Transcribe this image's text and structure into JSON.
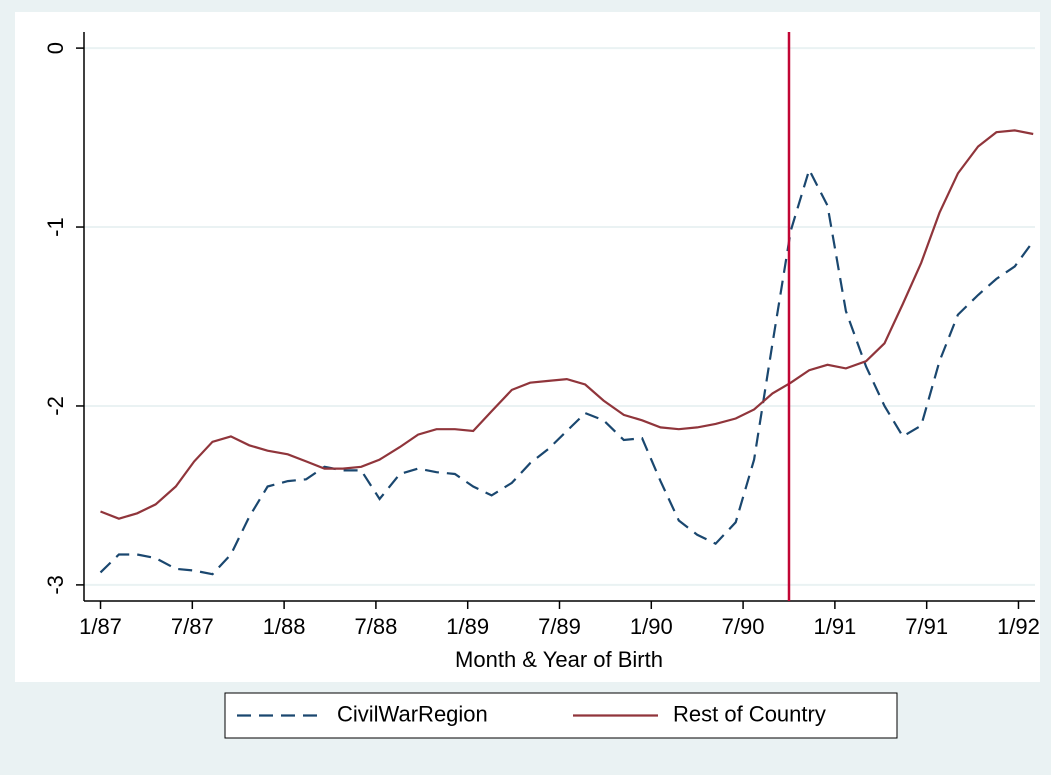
{
  "chart_data": {
    "type": "line",
    "x_label": "Month & Year of Birth",
    "x": [
      1987.0,
      1987.1,
      1987.2,
      1987.3,
      1987.41,
      1987.51,
      1987.61,
      1987.71,
      1987.81,
      1987.91,
      1988.02,
      1988.12,
      1988.22,
      1988.32,
      1988.42,
      1988.52,
      1988.63,
      1988.73,
      1988.83,
      1988.93,
      1989.03,
      1989.13,
      1989.24,
      1989.34,
      1989.44,
      1989.54,
      1989.64,
      1989.74,
      1989.85,
      1989.95,
      1990.05,
      1990.15,
      1990.25,
      1990.35,
      1990.46,
      1990.56,
      1990.66,
      1990.76,
      1990.86,
      1990.96,
      1991.06,
      1991.17,
      1991.27,
      1991.37,
      1991.47,
      1991.57,
      1991.67,
      1991.78,
      1991.88,
      1991.98,
      1992.08
    ],
    "series": [
      {
        "name": "CivilWarRegion",
        "color": "#1a476f",
        "dash": true,
        "values": [
          -2.93,
          -2.83,
          -2.83,
          -2.85,
          -2.91,
          -2.92,
          -2.94,
          -2.83,
          -2.62,
          -2.45,
          -2.42,
          -2.41,
          -2.34,
          -2.36,
          -2.36,
          -2.52,
          -2.38,
          -2.35,
          -2.37,
          -2.38,
          -2.45,
          -2.5,
          -2.43,
          -2.32,
          -2.24,
          -2.14,
          -2.04,
          -2.08,
          -2.19,
          -2.18,
          -2.42,
          -2.64,
          -2.72,
          -2.77,
          -2.65,
          -2.3,
          -1.65,
          -1.02,
          -0.68,
          -0.88,
          -1.47,
          -1.78,
          -2.0,
          -2.17,
          -2.11,
          -1.75,
          -1.49,
          -1.38,
          -1.29,
          -1.22,
          -1.08
        ]
      },
      {
        "name": "Rest of Country",
        "color": "#90353b",
        "dash": false,
        "values": [
          -2.59,
          -2.63,
          -2.6,
          -2.55,
          -2.45,
          -2.31,
          -2.2,
          -2.17,
          -2.22,
          -2.25,
          -2.27,
          -2.31,
          -2.35,
          -2.35,
          -2.34,
          -2.3,
          -2.23,
          -2.16,
          -2.13,
          -2.13,
          -2.14,
          -2.03,
          -1.91,
          -1.87,
          -1.86,
          -1.85,
          -1.88,
          -1.97,
          -2.05,
          -2.08,
          -2.12,
          -2.13,
          -2.12,
          -2.1,
          -2.07,
          -2.02,
          -1.93,
          -1.87,
          -1.8,
          -1.77,
          -1.79,
          -1.75,
          -1.65,
          -1.43,
          -1.2,
          -0.92,
          -0.7,
          -0.55,
          -0.47,
          -0.46,
          -0.48
        ]
      }
    ],
    "xlim": [
      1986.91,
      1992.09
    ],
    "xticks": [
      {
        "value": 1987,
        "label": "1/87"
      },
      {
        "value": 1987.5,
        "label": "7/87"
      },
      {
        "value": 1988,
        "label": "1/88"
      },
      {
        "value": 1988.5,
        "label": "7/88"
      },
      {
        "value": 1989,
        "label": "1/89"
      },
      {
        "value": 1989.5,
        "label": "7/89"
      },
      {
        "value": 1990,
        "label": "1/90"
      },
      {
        "value": 1990.5,
        "label": "7/90"
      },
      {
        "value": 1991,
        "label": "1/91"
      },
      {
        "value": 1991.5,
        "label": "7/91"
      },
      {
        "value": 1992,
        "label": "1/92"
      }
    ],
    "ylim": [
      -3.09,
      0.09
    ],
    "yticks": [
      0,
      -1,
      -2,
      -3
    ],
    "grid": true,
    "vline": {
      "x": 1990.75,
      "color": "#c10534"
    },
    "legend": "bottom"
  }
}
